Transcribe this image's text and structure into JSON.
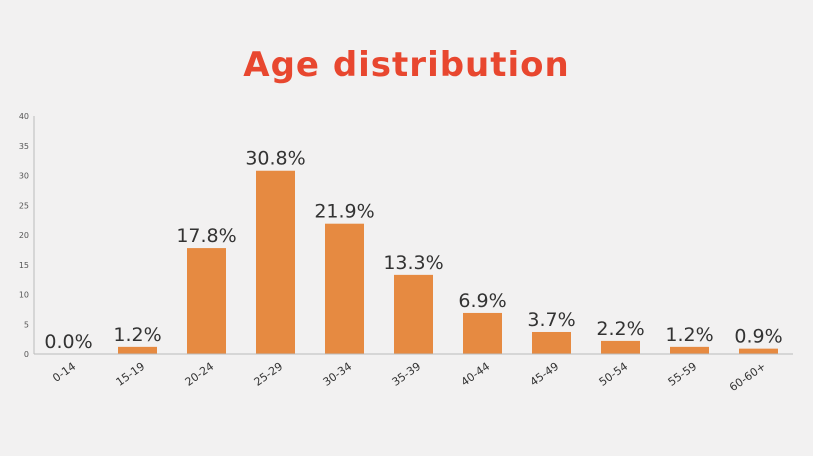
{
  "chart_data": {
    "type": "bar",
    "title": "Age distribution",
    "xlabel": "",
    "ylabel": "",
    "categories": [
      "0-14",
      "15-19",
      "20-24",
      "25-29",
      "30-34",
      "35-39",
      "40-44",
      "45-49",
      "50-54",
      "55-59",
      "60-60+"
    ],
    "values": [
      0.0,
      1.2,
      17.8,
      30.8,
      21.9,
      13.3,
      6.9,
      3.7,
      2.2,
      1.2,
      0.9
    ],
    "data_labels": [
      "0.0%",
      "1.2%",
      "17.8%",
      "30.8%",
      "21.9%",
      "13.3%",
      "6.9%",
      "3.7%",
      "2.2%",
      "1.2%",
      "0.9%"
    ],
    "yticks": [
      0,
      5,
      10,
      15,
      20,
      25,
      30,
      35,
      40
    ],
    "ylim": [
      0,
      40
    ],
    "grid": false,
    "legend": "none",
    "colors": {
      "bar": "#e68a41",
      "title": "#e8472f",
      "axis": "#bbbbbb",
      "label": "#333333"
    }
  }
}
